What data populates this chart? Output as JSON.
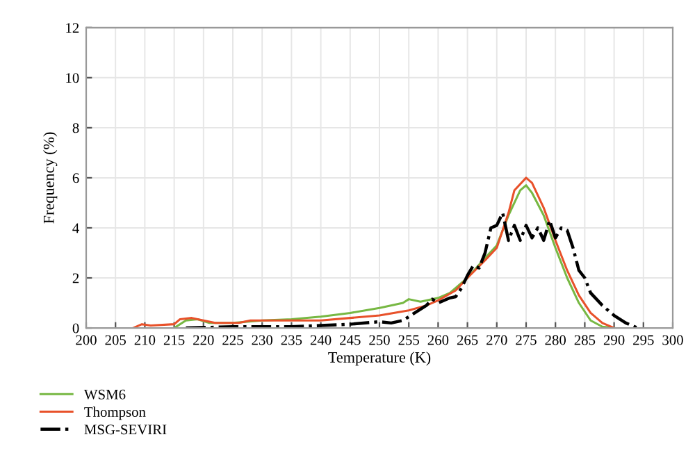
{
  "chart_data": {
    "type": "line",
    "xlabel": "Temperature (K)",
    "ylabel": "Frequency (%)",
    "xlim": [
      200,
      300
    ],
    "xticks": [
      200,
      205,
      210,
      215,
      220,
      225,
      230,
      235,
      240,
      245,
      250,
      255,
      260,
      265,
      270,
      275,
      280,
      285,
      290,
      295,
      300
    ],
    "ylim": [
      0,
      12
    ],
    "yticks": [
      0,
      2,
      4,
      6,
      8,
      10,
      12
    ],
    "grid": true,
    "legend": "bottom left",
    "marker": "none",
    "series": [
      {
        "name": "WSM6",
        "color": "#77b843",
        "line_style": "solid",
        "x": [
          215,
          217,
          219,
          221,
          225,
          230,
          235,
          240,
          245,
          250,
          254,
          255,
          257,
          260,
          262,
          265,
          268,
          270,
          272,
          274,
          275,
          276,
          278,
          280,
          282,
          284,
          286,
          288,
          290
        ],
        "values": [
          0,
          0.3,
          0.35,
          0.2,
          0.2,
          0.3,
          0.35,
          0.45,
          0.6,
          0.8,
          1.0,
          1.15,
          1.05,
          1.2,
          1.4,
          2.0,
          2.8,
          3.3,
          4.5,
          5.5,
          5.7,
          5.4,
          4.5,
          3.2,
          2.0,
          1.0,
          0.3,
          0.05,
          0
        ]
      },
      {
        "name": "Thompson",
        "color": "#e8512a",
        "line_style": "solid",
        "x": [
          208,
          209.5,
          211,
          215,
          216,
          218,
          220,
          222,
          226,
          228,
          235,
          240,
          245,
          250,
          255,
          258,
          260,
          263,
          265,
          268,
          270,
          272,
          273,
          275,
          276,
          278,
          280,
          282,
          284,
          286,
          288,
          290
        ],
        "values": [
          0,
          0.15,
          0.1,
          0.15,
          0.35,
          0.4,
          0.3,
          0.2,
          0.2,
          0.3,
          0.3,
          0.3,
          0.4,
          0.5,
          0.7,
          0.9,
          1.1,
          1.5,
          2.0,
          2.7,
          3.2,
          4.6,
          5.5,
          6.0,
          5.8,
          4.8,
          3.5,
          2.3,
          1.3,
          0.6,
          0.2,
          0
        ]
      },
      {
        "name": "MSG-SEVIRI",
        "color": "#000000",
        "line_style": "dashdot",
        "x": [
          217,
          225,
          235,
          245,
          250,
          252,
          254,
          256,
          258,
          259,
          260,
          262,
          263,
          264,
          265,
          266,
          267,
          268,
          269,
          270,
          271,
          272,
          273,
          274,
          275,
          276,
          277,
          278,
          279,
          280,
          281,
          282,
          283,
          284,
          285,
          286,
          288,
          290,
          292,
          294
        ],
        "values": [
          0,
          0.05,
          0.05,
          0.15,
          0.25,
          0.2,
          0.3,
          0.6,
          0.9,
          1.15,
          1.0,
          1.2,
          1.25,
          1.6,
          2.1,
          2.5,
          2.4,
          3.0,
          4.0,
          4.1,
          4.6,
          3.5,
          4.1,
          3.5,
          4.1,
          3.6,
          4.0,
          3.5,
          4.3,
          3.6,
          4.0,
          3.9,
          3.2,
          2.3,
          2.0,
          1.4,
          0.9,
          0.5,
          0.2,
          0
        ]
      }
    ]
  }
}
